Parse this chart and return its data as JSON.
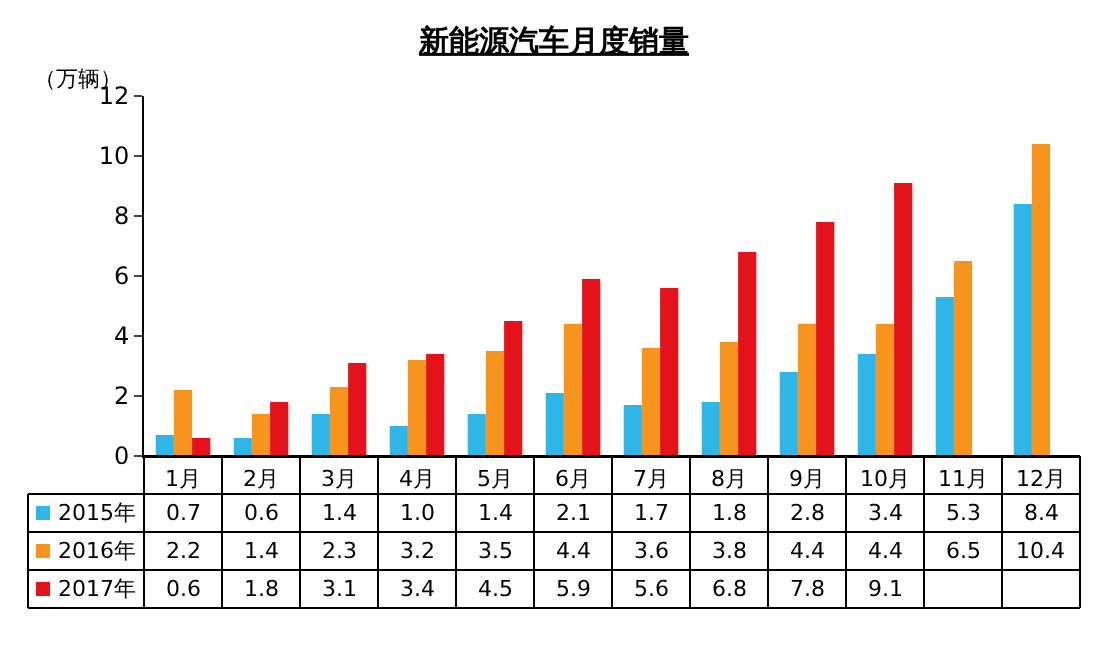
{
  "chart_data": {
    "type": "bar",
    "title": "新能源汽车月度销量",
    "ylabel": "（万辆）",
    "categories": [
      "1月",
      "2月",
      "3月",
      "4月",
      "5月",
      "6月",
      "7月",
      "8月",
      "9月",
      "10月",
      "11月",
      "12月"
    ],
    "series": [
      {
        "name": "2015年",
        "color": "#2fb5e6",
        "values": [
          0.7,
          0.6,
          1.4,
          1.0,
          1.4,
          2.1,
          1.7,
          1.8,
          2.8,
          3.4,
          5.3,
          8.4
        ],
        "value_labels": [
          "0.7",
          "0.6",
          "1.4",
          "1.0",
          "1.4",
          "2.1",
          "1.7",
          "1.8",
          "2.8",
          "3.4",
          "5.3",
          "8.4"
        ]
      },
      {
        "name": "2016年",
        "color": "#f7941d",
        "values": [
          2.2,
          1.4,
          2.3,
          3.2,
          3.5,
          4.4,
          3.6,
          3.8,
          4.4,
          4.4,
          6.5,
          10.4
        ],
        "value_labels": [
          "2.2",
          "1.4",
          "2.3",
          "3.2",
          "3.5",
          "4.4",
          "3.6",
          "3.8",
          "4.4",
          "4.4",
          "6.5",
          "10.4"
        ]
      },
      {
        "name": "2017年",
        "color": "#e3121b",
        "values": [
          0.6,
          1.8,
          3.1,
          3.4,
          4.5,
          5.9,
          5.6,
          6.8,
          7.8,
          9.1,
          null,
          null
        ],
        "value_labels": [
          "0.6",
          "1.8",
          "3.1",
          "3.4",
          "4.5",
          "5.9",
          "5.6",
          "6.8",
          "7.8",
          "9.1",
          null,
          null
        ]
      }
    ],
    "ylim": [
      0,
      12
    ],
    "yticks": [
      0,
      2,
      4,
      6,
      8,
      10,
      12
    ],
    "legend": "bottom left"
  }
}
